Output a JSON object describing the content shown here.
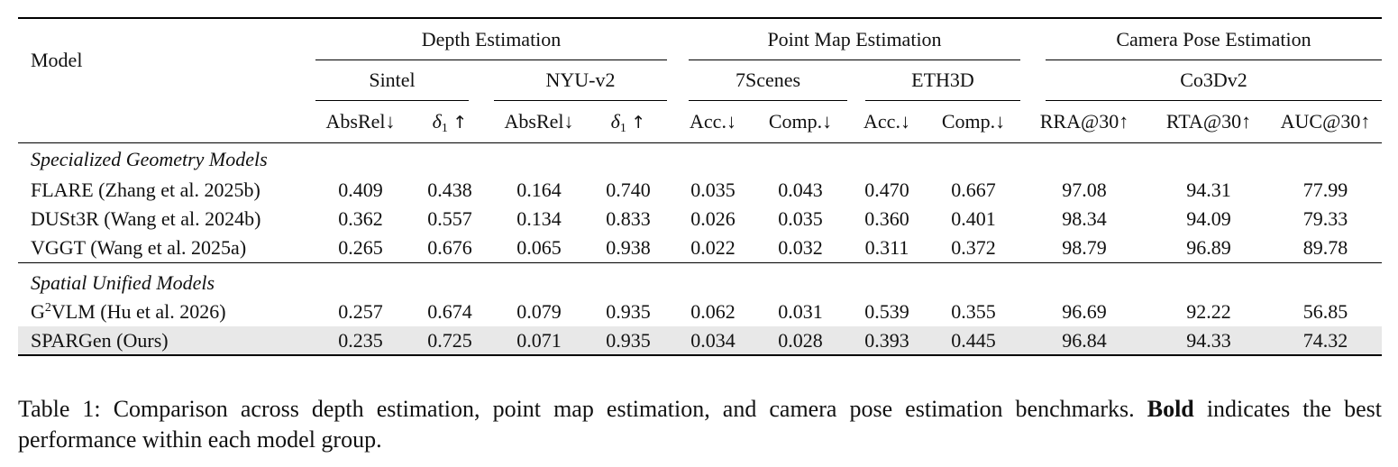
{
  "table": {
    "model_header": "Model",
    "groups": [
      {
        "label": "Depth Estimation"
      },
      {
        "label": "Point Map Estimation"
      },
      {
        "label": "Camera Pose Estimation"
      }
    ],
    "datasets": [
      "Sintel",
      "NYU-v2",
      "7Scenes",
      "ETH3D",
      "Co3Dv2"
    ],
    "metrics": [
      "AbsRel↓",
      "δ1 ↑",
      "AbsRel↓",
      "δ1 ↑",
      "Acc.↓",
      "Comp.↓",
      "Acc.↓",
      "Comp.↓",
      "RRA@30↑",
      "RTA@30↑",
      "AUC@30↑"
    ],
    "sections": [
      {
        "title": "Specialized Geometry Models",
        "rows": [
          {
            "model": "FLARE (Zhang et al. 2025b)",
            "values": [
              "0.409",
              "0.438",
              "0.164",
              "0.740",
              "0.035",
              "0.043",
              "0.470",
              "0.667",
              "97.08",
              "94.31",
              "77.99"
            ],
            "bold": [
              false,
              false,
              false,
              false,
              false,
              false,
              false,
              false,
              false,
              false,
              false
            ]
          },
          {
            "model": "DUSt3R (Wang et al. 2024b)",
            "values": [
              "0.362",
              "0.557",
              "0.134",
              "0.833",
              "0.026",
              "0.035",
              "0.360",
              "0.401",
              "98.34",
              "94.09",
              "79.33"
            ],
            "bold": [
              false,
              false,
              false,
              false,
              false,
              false,
              false,
              false,
              false,
              false,
              false
            ]
          },
          {
            "model": "VGGT (Wang et al. 2025a)",
            "values": [
              "0.265",
              "0.676",
              "0.065",
              "0.938",
              "0.022",
              "0.032",
              "0.311",
              "0.372",
              "98.79",
              "96.89",
              "89.78"
            ],
            "bold": [
              true,
              true,
              true,
              true,
              true,
              true,
              true,
              true,
              true,
              true,
              true
            ]
          }
        ]
      },
      {
        "title": "Spatial Unified Models",
        "rows": [
          {
            "model_base": "G",
            "model_sup": "2",
            "model_rest": "VLM (Hu et al. 2026)",
            "values": [
              "0.257",
              "0.674",
              "0.079",
              "0.935",
              "0.062",
              "0.031",
              "0.539",
              "0.355",
              "96.69",
              "92.22",
              "56.85"
            ],
            "bold": [
              false,
              false,
              false,
              true,
              false,
              false,
              false,
              true,
              false,
              false,
              false
            ]
          },
          {
            "model": "SPARGen (Ours)",
            "values": [
              "0.235",
              "0.725",
              "0.071",
              "0.935",
              "0.034",
              "0.028",
              "0.393",
              "0.445",
              "96.84",
              "94.33",
              "74.32"
            ],
            "bold": [
              true,
              true,
              true,
              true,
              true,
              true,
              true,
              false,
              true,
              true,
              true
            ],
            "model_bold": true,
            "highlight": true
          }
        ]
      }
    ]
  },
  "caption": {
    "prefix": "Table 1: Comparison across depth estimation, point map estimation, and camera pose estimation benchmarks. ",
    "bold_word": "Bold",
    "suffix": " indicates the best performance within each model group."
  }
}
